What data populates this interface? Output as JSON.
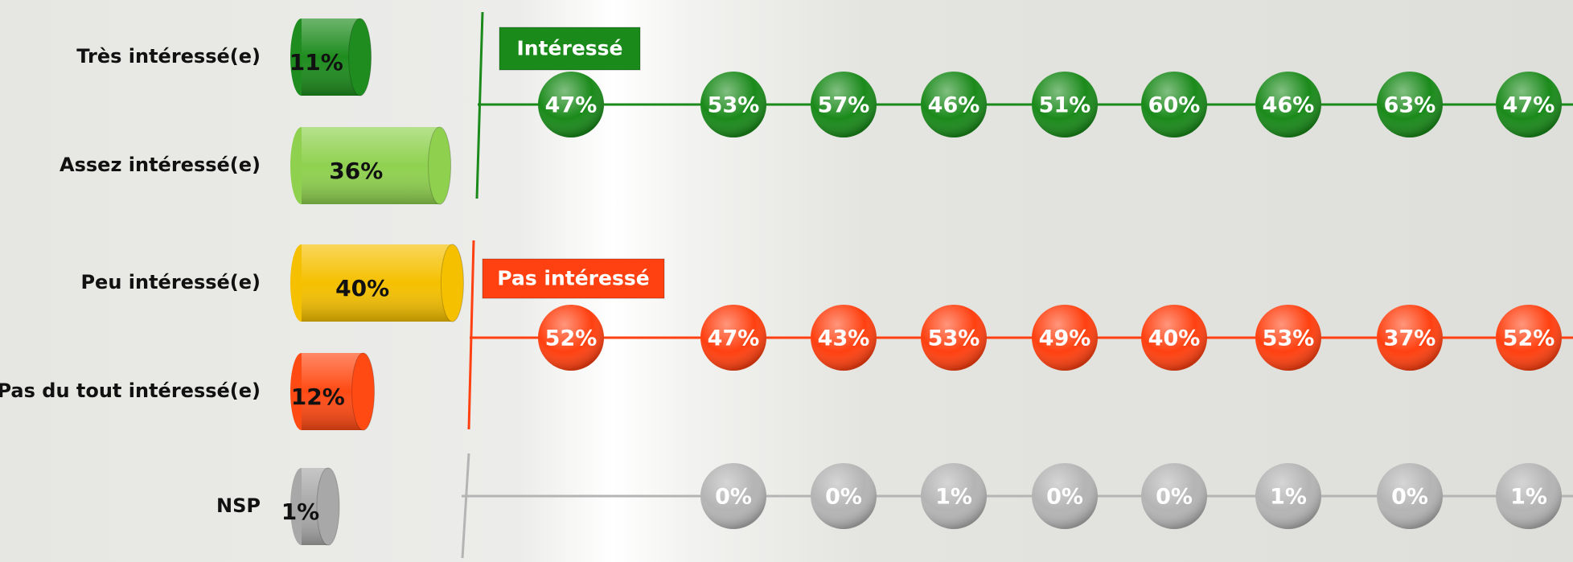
{
  "chart_data": [
    {
      "type": "bar",
      "orientation": "horizontal",
      "categories": [
        "Très intéressé(e)",
        "Assez intéressé(e)",
        "Peu intéressé(e)",
        "Pas du tout intéressé(e)",
        "NSP"
      ],
      "values": [
        11,
        36,
        40,
        12,
        1
      ],
      "value_labels": [
        "11%",
        "36%",
        "40%",
        "12%",
        "1%"
      ],
      "colors": [
        "#1e8c1e",
        "#8fd14f",
        "#f5c000",
        "#ff4a14",
        "#a8a8a8"
      ]
    },
    {
      "type": "dot",
      "series": [
        {
          "name": "Intéressé",
          "color": "#1a8a1a",
          "values": [
            47,
            53,
            57,
            46,
            51,
            60,
            46,
            63,
            47
          ],
          "value_labels": [
            "47%",
            "53%",
            "57%",
            "46%",
            "51%",
            "60%",
            "46%",
            "63%",
            "47%"
          ]
        },
        {
          "name": "Pas intéressé",
          "color": "#ff4010",
          "values": [
            52,
            47,
            43,
            53,
            49,
            40,
            53,
            37,
            52
          ],
          "value_labels": [
            "52%",
            "47%",
            "43%",
            "53%",
            "49%",
            "40%",
            "53%",
            "37%",
            "52%"
          ]
        },
        {
          "color": "#b4b4b4",
          "values": [
            null,
            0,
            0,
            1,
            0,
            0,
            1,
            0,
            1
          ],
          "value_labels": [
            null,
            "0%",
            "0%",
            "1%",
            "0%",
            "0%",
            "1%",
            "0%",
            "1%"
          ]
        }
      ]
    }
  ]
}
